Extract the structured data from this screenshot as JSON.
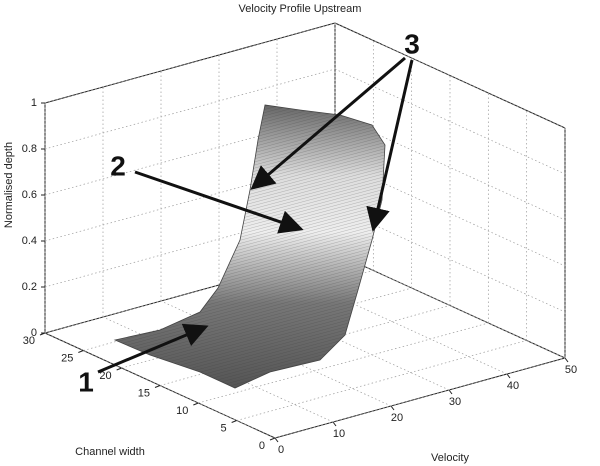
{
  "chart_data": {
    "type": "surface3d",
    "title": "Velocity Profile Upstream",
    "xlabel": "Velocity",
    "ylabel": "Channel width",
    "zlabel": "Normalised depth",
    "xlim": [
      0,
      50
    ],
    "xticks": [
      0,
      10,
      20,
      30,
      40,
      50
    ],
    "ylim": [
      0,
      30
    ],
    "yticks": [
      0,
      5,
      10,
      15,
      20,
      25,
      30
    ],
    "zlim": [
      0,
      1
    ],
    "zticks": [
      0,
      0.2,
      0.4,
      0.6,
      0.8,
      1
    ],
    "grid": true,
    "annotations": [
      "1",
      "2",
      "3"
    ]
  }
}
